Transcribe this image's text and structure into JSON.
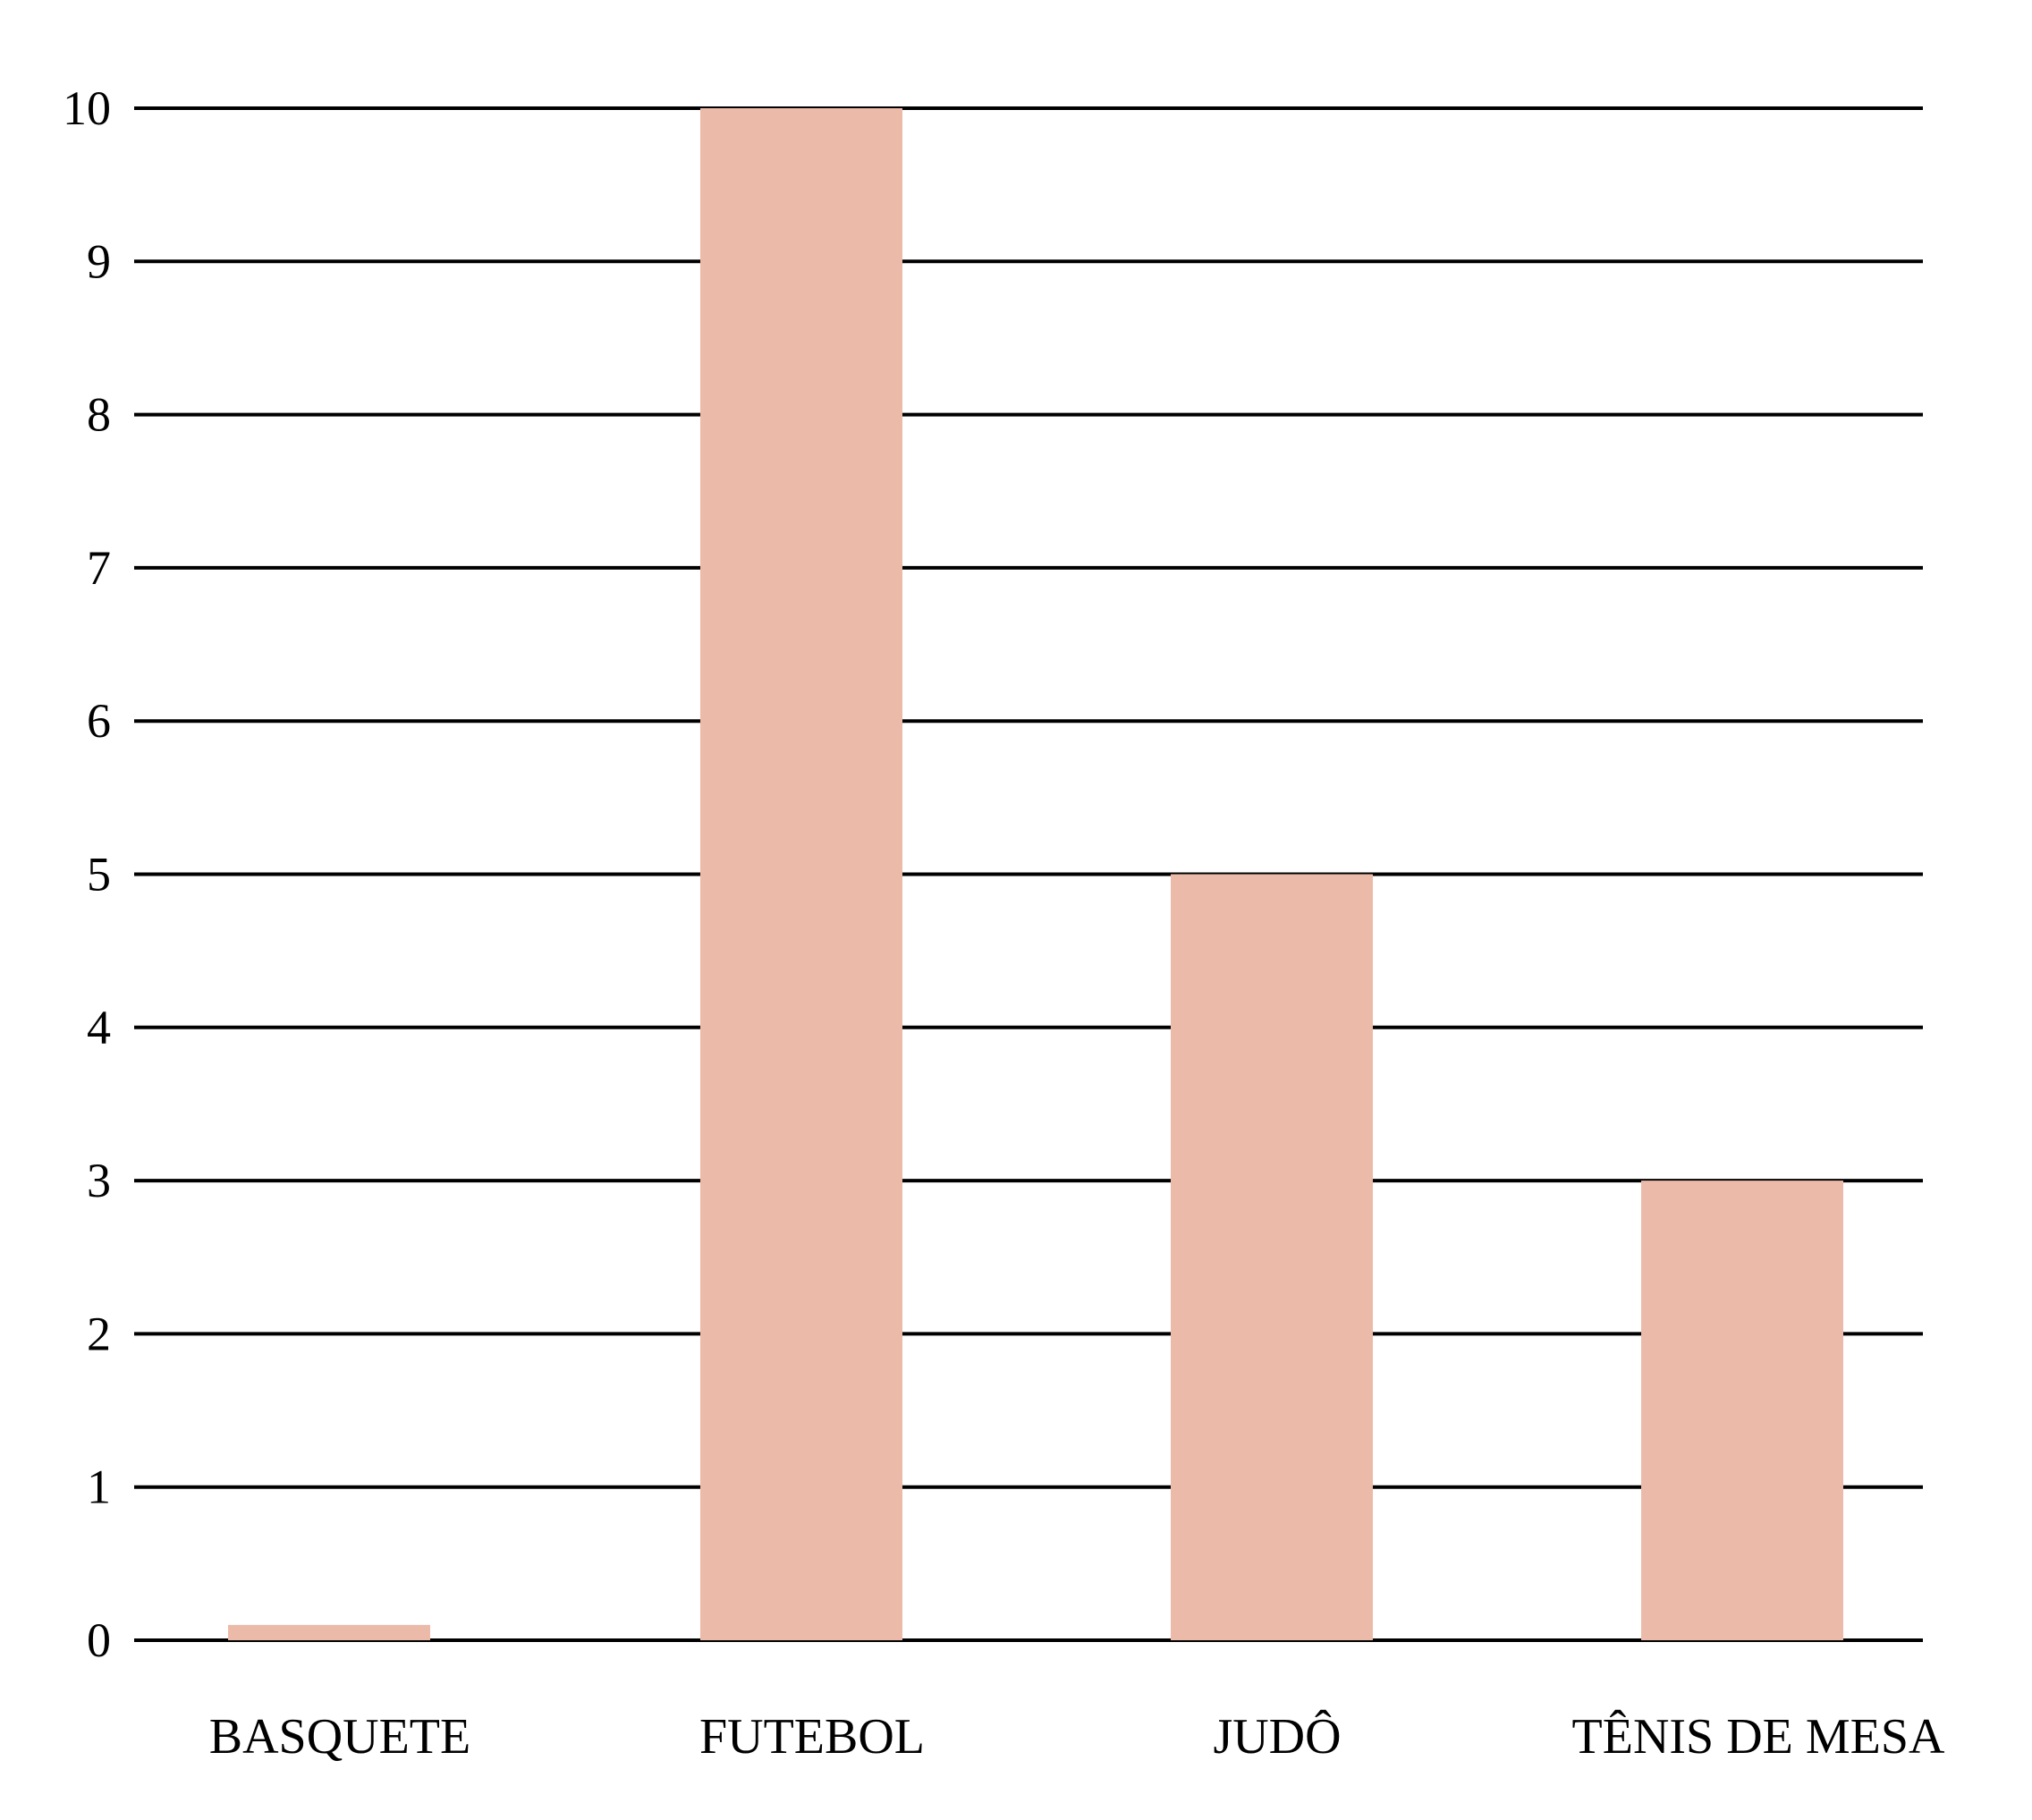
{
  "chart_data": {
    "type": "bar",
    "title": "",
    "xlabel": "",
    "ylabel": "",
    "categories": [
      "BASQUETE",
      "FUTEBOL",
      "JUDÔ",
      "TÊNIS DE MESA"
    ],
    "values": [
      0.1,
      10,
      5,
      3
    ],
    "ylim": [
      0,
      10
    ],
    "yticks": [
      0,
      1,
      2,
      3,
      4,
      5,
      6,
      7,
      8,
      9,
      10
    ],
    "ytick_labels": [
      "0",
      "1",
      "2",
      "3",
      "4",
      "5",
      "6",
      "7",
      "8",
      "9",
      "10"
    ],
    "grid": true,
    "legend": "none",
    "bar_color": "#ecbaa8",
    "grid_color": "#000000"
  }
}
